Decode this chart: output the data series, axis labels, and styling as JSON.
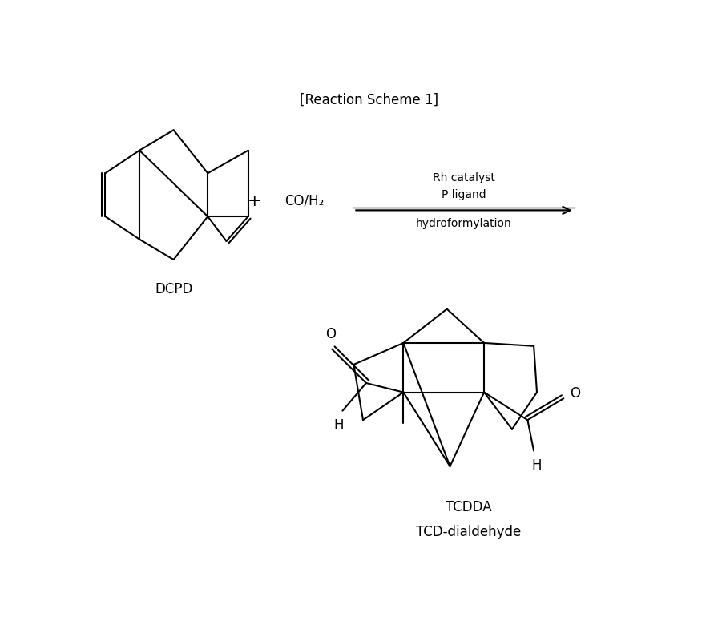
{
  "title": "[Reaction Scheme 1]",
  "background_color": "#ffffff",
  "text_color": "#000000",
  "dcpd_label": "DCPD",
  "product_label1": "TCDDA",
  "product_label2": "TCD-dialdehyde",
  "reagent_line1": "Rh catalyst",
  "reagent_line2": "P ligand",
  "reagent_line3": "hydroformylation",
  "plus_sign": "+",
  "co_h2": "CO/H₂",
  "fig_width": 8.96,
  "fig_height": 7.75,
  "dpi": 100
}
